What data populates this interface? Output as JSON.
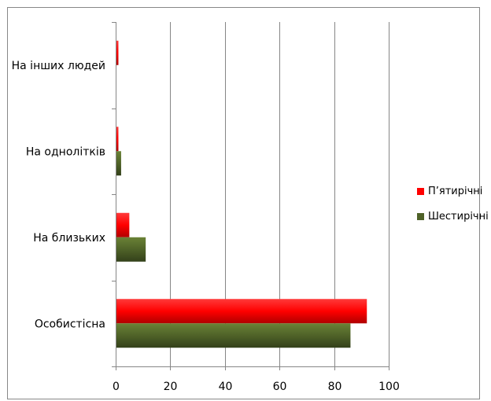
{
  "chart_data": {
    "type": "bar",
    "orientation": "horizontal",
    "categories": [
      "Особистісна",
      "На близьких",
      "На однолітків",
      "На інших людей"
    ],
    "series": [
      {
        "name": "П’ятирічні",
        "values": [
          92,
          5,
          1,
          1
        ],
        "color": "#ff0000"
      },
      {
        "name": "Шестирічні",
        "values": [
          86,
          11,
          2,
          0
        ],
        "color": "#4f6228"
      }
    ],
    "x_ticks": [
      0,
      20,
      40,
      60,
      80,
      100
    ],
    "xlim": [
      0,
      100
    ],
    "grid": "vertical",
    "legend_position": "right",
    "title": "",
    "xlabel": "",
    "ylabel": ""
  }
}
